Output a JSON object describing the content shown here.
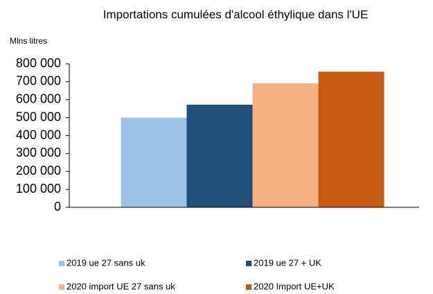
{
  "chart_data": {
    "type": "bar",
    "title": "Importations cumulées d'alcool éthylique dans l'UE",
    "y_label": "Mlns litres",
    "categories": [
      null
    ],
    "series": [
      {
        "name": "2019 ue 27 sans uk",
        "color": "#9dc3e6",
        "values": [
          500000
        ]
      },
      {
        "name": "2019 ue 27 + UK",
        "color": "#1f4e79",
        "values": [
          572000
        ]
      },
      {
        "name": "2020 import UE 27  sans uk",
        "color": "#f4b183",
        "values": [
          691000
        ]
      },
      {
        "name": "2020 Import UE+UK",
        "color": "#c55a11",
        "values": [
          756000
        ]
      }
    ],
    "ylim": [
      0,
      800000
    ],
    "yticks": [
      0,
      {
        "value": 100000,
        "label": "100 000"
      },
      {
        "value": 200000,
        "label": "200 000"
      },
      {
        "value": 300000,
        "label": "300 000"
      },
      {
        "value": 400000,
        "label": "400 000"
      },
      {
        "value": 500000,
        "label": "500 000"
      },
      {
        "value": 600000,
        "label": "600 000"
      },
      {
        "value": 700000,
        "label": "700 000"
      },
      {
        "value": 800000,
        "label": "800 000"
      }
    ],
    "grid": false,
    "legend": "bottom"
  }
}
